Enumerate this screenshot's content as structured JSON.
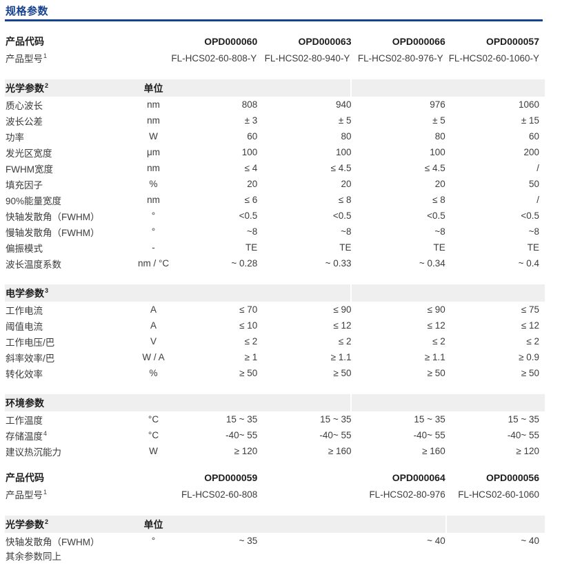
{
  "page": {
    "title": "规格参数",
    "accent_color": "#17428f",
    "section_bar_color": "#efefef"
  },
  "groups": [
    {
      "code_label": "产品代码",
      "model_label": "产品型号",
      "model_sup": "1",
      "codes": [
        "OPD000060",
        "OPD000063",
        "OPD000066",
        "OPD000057"
      ],
      "models": [
        "FL-HCS02-60-808-Y",
        "FL-HCS02-80-940-Y",
        "FL-HCS02-80-976-Y",
        "FL-HCS02-60-1060-Y"
      ],
      "sections": [
        {
          "title": "光学参数",
          "sup": "2",
          "unit_header": "单位",
          "rows": [
            {
              "label": "质心波长",
              "sup": "",
              "unit": "nm",
              "values": [
                "808",
                "940",
                "976",
                "1060"
              ]
            },
            {
              "label": "波长公差",
              "sup": "",
              "unit": "nm",
              "values": [
                "± 3",
                "± 5",
                "± 5",
                "± 15"
              ]
            },
            {
              "label": "功率",
              "sup": "",
              "unit": "W",
              "values": [
                "60",
                "80",
                "80",
                "60"
              ]
            },
            {
              "label": "发光区宽度",
              "sup": "",
              "unit": "μm",
              "values": [
                "100",
                "100",
                "100",
                "200"
              ]
            },
            {
              "label": "FWHM宽度",
              "sup": "",
              "unit": "nm",
              "values": [
                "≤ 4",
                "≤ 4.5",
                "≤ 4.5",
                "/"
              ]
            },
            {
              "label": "填充因子",
              "sup": "",
              "unit": "%",
              "values": [
                "20",
                "20",
                "20",
                "50"
              ]
            },
            {
              "label": "90%能量宽度",
              "sup": "",
              "unit": "nm",
              "values": [
                "≤ 6",
                "≤ 8",
                "≤ 8",
                "/"
              ]
            },
            {
              "label": "快轴发散角（FWHM）",
              "sup": "",
              "unit": "°",
              "values": [
                "<0.5",
                "<0.5",
                "<0.5",
                "<0.5"
              ]
            },
            {
              "label": "慢轴发散角（FWHM）",
              "sup": "",
              "unit": "°",
              "values": [
                "~8",
                "~8",
                "~8",
                "~8"
              ]
            },
            {
              "label": "偏振模式",
              "sup": "",
              "unit": "-",
              "values": [
                "TE",
                "TE",
                "TE",
                "TE"
              ]
            },
            {
              "label": "波长温度系数",
              "sup": "",
              "unit": "nm / °C",
              "values": [
                "~ 0.28",
                "~ 0.33",
                "~ 0.34",
                "~ 0.4"
              ]
            }
          ]
        },
        {
          "title": "电学参数",
          "sup": "3",
          "unit_header": "",
          "rows": [
            {
              "label": "工作电流",
              "sup": "",
              "unit": "A",
              "values": [
                "≤ 70",
                "≤ 90",
                "≤ 90",
                "≤ 75"
              ]
            },
            {
              "label": "阈值电流",
              "sup": "",
              "unit": "A",
              "values": [
                "≤ 10",
                "≤ 12",
                "≤ 12",
                "≤ 12"
              ]
            },
            {
              "label": "工作电压/巴",
              "sup": "",
              "unit": "V",
              "values": [
                "≤ 2",
                "≤ 2",
                "≤ 2",
                "≤ 2"
              ]
            },
            {
              "label": "斜率效率/巴",
              "sup": "",
              "unit": "W / A",
              "values": [
                "≥ 1",
                "≥ 1.1",
                "≥ 1.1",
                "≥ 0.9"
              ]
            },
            {
              "label": "转化效率",
              "sup": "",
              "unit": "%",
              "values": [
                "≥ 50",
                "≥ 50",
                "≥ 50",
                "≥ 50"
              ]
            }
          ]
        },
        {
          "title": "环境参数",
          "sup": "",
          "unit_header": "",
          "rows": [
            {
              "label": "工作温度",
              "sup": "",
              "unit": "°C",
              "values": [
                "15 ~ 35",
                "15 ~ 35",
                "15 ~ 35",
                "15 ~ 35"
              ]
            },
            {
              "label": "存储温度",
              "sup": "4",
              "unit": "°C",
              "values": [
                "-40~ 55",
                "-40~ 55",
                "-40~ 55",
                "-40~ 55"
              ]
            },
            {
              "label": "建议热沉能力",
              "sup": "",
              "unit": "W",
              "values": [
                "≥ 120",
                "≥ 160",
                "≥ 160",
                "≥ 120"
              ]
            }
          ]
        }
      ],
      "footnote": ""
    },
    {
      "code_label": "产品代码",
      "model_label": "产品型号",
      "model_sup": "1",
      "codes": [
        "OPD000059",
        "",
        "OPD000064",
        "OPD000056"
      ],
      "models": [
        "FL-HCS02-60-808",
        "",
        "FL-HCS02-80-976",
        "FL-HCS02-60-1060"
      ],
      "sections": [
        {
          "title": "光学参数",
          "sup": "2",
          "unit_header": "单位",
          "rows": [
            {
              "label": "快轴发散角（FWHM）",
              "sup": "",
              "unit": "°",
              "values": [
                "~ 35",
                "",
                "~ 40",
                "~ 40"
              ]
            }
          ]
        }
      ],
      "footnote": "其余参数同上"
    }
  ]
}
